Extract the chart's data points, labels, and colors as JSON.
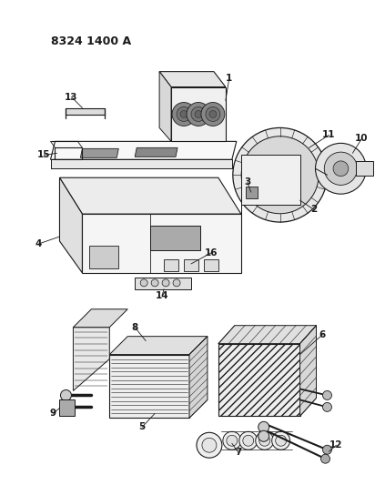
{
  "title": "8324 1400 A",
  "bg_color": "#ffffff",
  "lc": "#1a1a1a",
  "figsize": [
    4.12,
    5.33
  ],
  "dpi": 100
}
